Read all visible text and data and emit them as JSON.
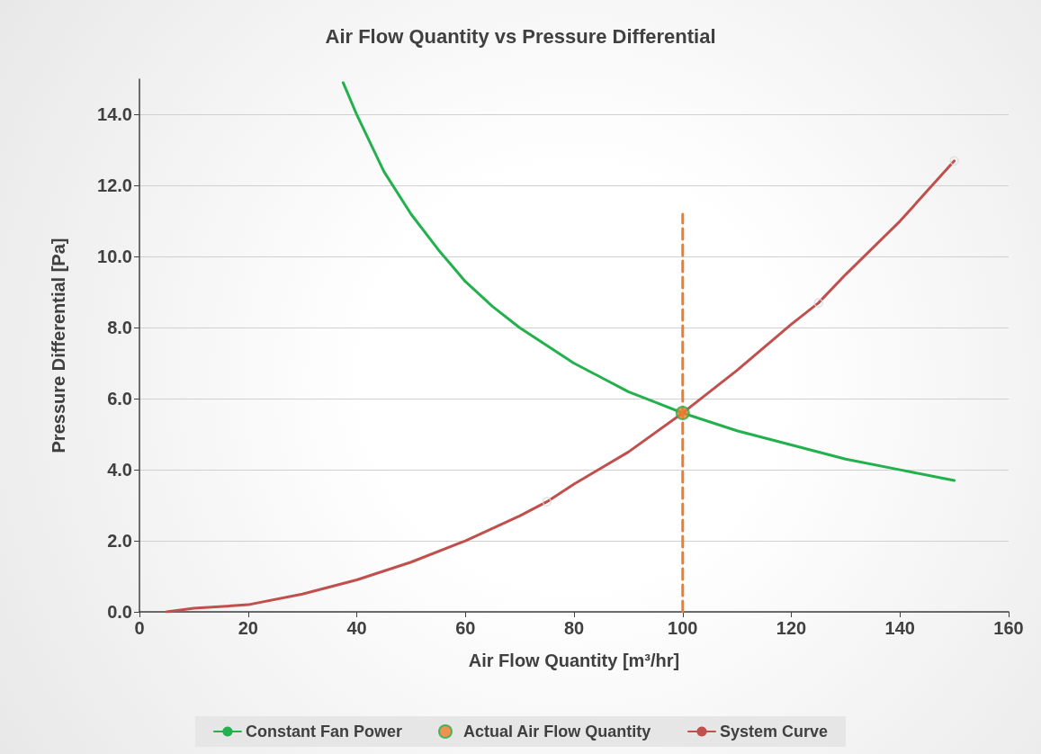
{
  "chart_data": {
    "type": "line",
    "title": "Air Flow Quantity vs Pressure Differential",
    "xlabel": "Air Flow Quantity [m³/hr]",
    "ylabel": "Pressure Differential [Pa]",
    "xlim": [
      0,
      160
    ],
    "xticks": [
      0,
      20,
      40,
      60,
      80,
      100,
      120,
      140,
      160
    ],
    "ylim": [
      0,
      15
    ],
    "yticks": [
      {
        "value": 0,
        "label": "0.0"
      },
      {
        "value": 2,
        "label": "2.0"
      },
      {
        "value": 4,
        "label": "4.0"
      },
      {
        "value": 6,
        "label": "6.0"
      },
      {
        "value": 8,
        "label": "8.0"
      },
      {
        "value": 10,
        "label": "10.0"
      },
      {
        "value": 12,
        "label": "12.0"
      },
      {
        "value": 14,
        "label": "14.0"
      }
    ],
    "grid": "y",
    "legend": "bottom",
    "series": [
      {
        "name": "Constant Fan Power",
        "color": "#22b14c",
        "marker": "none",
        "line_style": "solid",
        "x": [
          37.5,
          40,
          45,
          50,
          55,
          60,
          65,
          70,
          75,
          80,
          85,
          90,
          95,
          100,
          110,
          120,
          130,
          140,
          150
        ],
        "values": [
          14.9,
          14.0,
          12.4,
          11.2,
          10.2,
          9.3,
          8.6,
          8.0,
          7.5,
          7.0,
          6.6,
          6.2,
          5.9,
          5.6,
          5.1,
          4.7,
          4.3,
          4.0,
          3.7
        ]
      },
      {
        "name": "Actual Air Flow Quantity",
        "type": "scatter",
        "color": "#ed7d31",
        "marker": "circle",
        "x": [
          100
        ],
        "values": [
          5.6
        ]
      },
      {
        "name": "System Curve",
        "color": "#c0504d",
        "marker": "none",
        "line_style": "solid",
        "x": [
          5,
          10,
          20,
          30,
          40,
          50,
          60,
          70,
          75,
          80,
          90,
          100,
          110,
          120,
          125,
          130,
          140,
          150
        ],
        "values": [
          0.0,
          0.1,
          0.2,
          0.5,
          0.9,
          1.4,
          2.0,
          2.7,
          3.1,
          3.6,
          4.5,
          5.6,
          6.8,
          8.1,
          8.7,
          9.5,
          11.0,
          12.7
        ]
      },
      {
        "type": "scatter",
        "color": "#d9d9d9",
        "marker": "circle",
        "x": [
          75,
          125,
          150
        ],
        "values": [
          3.1,
          8.7,
          12.7
        ]
      },
      {
        "color": "#ed7d31",
        "marker": "none",
        "line_style": "dashed",
        "x": [
          100,
          100
        ],
        "values": [
          0,
          11.2
        ]
      }
    ]
  }
}
